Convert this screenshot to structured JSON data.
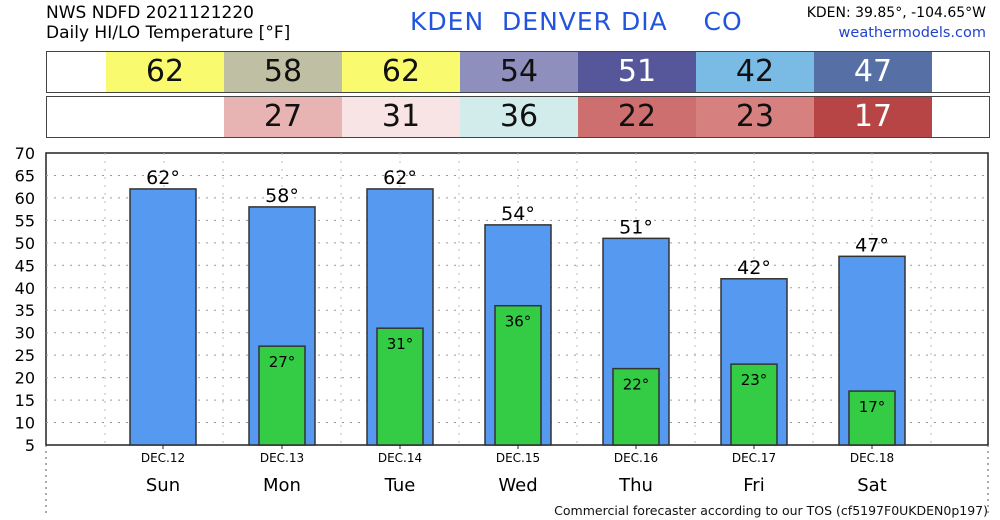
{
  "header": {
    "line1": "NWS NDFD 2021121220",
    "line2": "Daily HI/LO Temperature [°F]",
    "station": "KDEN  DENVER DIA    CO",
    "coords": "KDEN: 39.85°, -104.65°W",
    "site": "weathermodels.com"
  },
  "hi_strip": [
    {
      "value": "62",
      "color": "#fafa6e"
    },
    {
      "value": "58",
      "color": "#bfbfa3"
    },
    {
      "value": "62",
      "color": "#fafa6e"
    },
    {
      "value": "54",
      "color": "#8f8fbd"
    },
    {
      "value": "51",
      "color": "#56569a"
    },
    {
      "value": "42",
      "color": "#7abbe5"
    },
    {
      "value": "47",
      "color": "#5670a6"
    }
  ],
  "lo_strip": [
    {
      "value": "",
      "color": "#ffffff"
    },
    {
      "value": "27",
      "color": "#e8b3b3"
    },
    {
      "value": "31",
      "color": "#f8e4e4"
    },
    {
      "value": "36",
      "color": "#d2ecec"
    },
    {
      "value": "22",
      "color": "#cd6f6f"
    },
    {
      "value": "23",
      "color": "#d78080"
    },
    {
      "value": "17",
      "color": "#b84545"
    }
  ],
  "chart_data": {
    "type": "bar",
    "categories": [
      "Sun",
      "Mon",
      "Tue",
      "Wed",
      "Thu",
      "Fri",
      "Sat"
    ],
    "dates": [
      "DEC.12",
      "DEC.13",
      "DEC.14",
      "DEC.15",
      "DEC.16",
      "DEC.17",
      "DEC.18"
    ],
    "series": [
      {
        "name": "HI",
        "values": [
          62,
          58,
          62,
          54,
          51,
          42,
          47
        ],
        "color": "#5599f0"
      },
      {
        "name": "LO",
        "values": [
          null,
          27,
          31,
          36,
          22,
          23,
          17
        ],
        "color": "#33cc44"
      }
    ],
    "ylim": [
      5,
      70
    ],
    "yticks": [
      5,
      10,
      15,
      20,
      25,
      30,
      35,
      40,
      45,
      50,
      55,
      60,
      65,
      70
    ],
    "grid": true,
    "value_suffix": "°"
  },
  "footer": "Commercial forecaster according to our TOS (cf5197F0UKDEN0p197)"
}
